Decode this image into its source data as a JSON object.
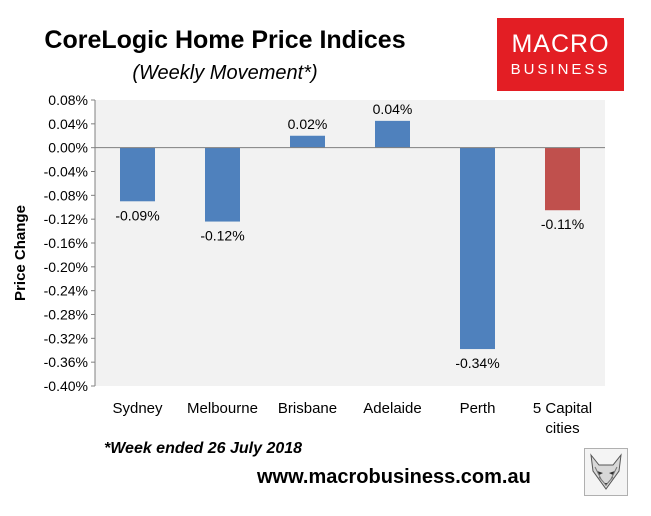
{
  "header": {
    "title": "CoreLogic Home Price Indices",
    "subtitle": "(Weekly Movement*)"
  },
  "logo": {
    "line1": "MACRO",
    "line2": "BUSINESS",
    "color": "#e31e24"
  },
  "footer": {
    "footnote": "*Week ended 26 July 2018",
    "website": "www.macrobusiness.com.au",
    "fox_icon": "fox-head-icon"
  },
  "chart_data": {
    "type": "bar",
    "title": "CoreLogic Home Price Indices",
    "subtitle": "(Weekly Movement*)",
    "ylabel": "Price Change",
    "xlabel": "",
    "ylim": [
      -0.4,
      0.08
    ],
    "ytick_step": 0.04,
    "ytick_labels": [
      "0.08%",
      "0.04%",
      "0.00%",
      "-0.04%",
      "-0.08%",
      "-0.12%",
      "-0.16%",
      "-0.20%",
      "-0.24%",
      "-0.28%",
      "-0.32%",
      "-0.36%",
      "-0.40%"
    ],
    "grid": false,
    "plot_background": "#f2f2f2",
    "categories": [
      "Sydney",
      "Melbourne",
      "Brisbane",
      "Adelaide",
      "Perth",
      "5 Capital cities"
    ],
    "category_lines": [
      [
        "Sydney"
      ],
      [
        "Melbourne"
      ],
      [
        "Brisbane"
      ],
      [
        "Adelaide"
      ],
      [
        "Perth"
      ],
      [
        "5 Capital",
        "cities"
      ]
    ],
    "values": [
      -0.09,
      -0.124,
      0.02,
      0.045,
      -0.338,
      -0.105
    ],
    "data_labels": [
      "-0.09%",
      "-0.12%",
      "0.02%",
      "0.04%",
      "-0.34%",
      "-0.11%"
    ],
    "colors": [
      "#4f81bd",
      "#4f81bd",
      "#4f81bd",
      "#4f81bd",
      "#4f81bd",
      "#c0504d"
    ]
  }
}
